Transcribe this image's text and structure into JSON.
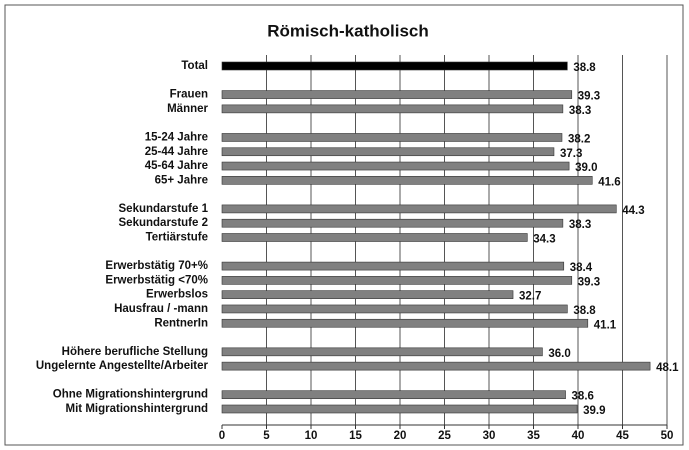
{
  "chart_data": {
    "type": "bar",
    "orientation": "horizontal",
    "title": "Römisch-katholisch",
    "categories": [
      "Total",
      null,
      "Frauen",
      "Männer",
      null,
      "15-24 Jahre",
      "25-44 Jahre",
      "45-64 Jahre",
      "65+ Jahre",
      null,
      "Sekundarstufe 1",
      "Sekundarstufe 2",
      "Tertiärstufe",
      null,
      "Erwerbstätig 70+%",
      "Erwerbstätig <70%",
      "Erwerbslos",
      "Hausfrau / -mann",
      "RentnerIn",
      null,
      "Höhere berufliche Stellung",
      "Ungelernte Angestellte/Arbeiter",
      null,
      "Ohne Migrationshintergrund",
      "Mit Migrationshintergrund"
    ],
    "values": [
      38.8,
      null,
      39.3,
      38.3,
      null,
      38.2,
      37.3,
      39.0,
      41.6,
      null,
      44.3,
      38.3,
      34.3,
      null,
      38.4,
      39.3,
      32.7,
      38.8,
      41.1,
      null,
      36.0,
      48.1,
      null,
      38.6,
      39.9
    ],
    "value_labels": [
      "38.8",
      null,
      "39.3",
      "38.3",
      null,
      "38.2",
      "37.3",
      "39.0",
      "41.6",
      null,
      "44.3",
      "38.3",
      "34.3",
      null,
      "38.4",
      "39.3",
      "32.7",
      "38.8",
      "41.1",
      null,
      "36.0",
      "48.1",
      null,
      "38.6",
      "39.9"
    ],
    "colors": [
      "#000000",
      null,
      "#808080",
      "#808080",
      null,
      "#808080",
      "#808080",
      "#808080",
      "#808080",
      null,
      "#808080",
      "#808080",
      "#808080",
      null,
      "#808080",
      "#808080",
      "#808080",
      "#808080",
      "#808080",
      null,
      "#808080",
      "#808080",
      null,
      "#808080",
      "#808080"
    ],
    "xlim": [
      0,
      50
    ],
    "xticks": [
      0,
      5,
      10,
      15,
      20,
      25,
      30,
      35,
      40,
      45,
      50
    ],
    "grid": true
  }
}
